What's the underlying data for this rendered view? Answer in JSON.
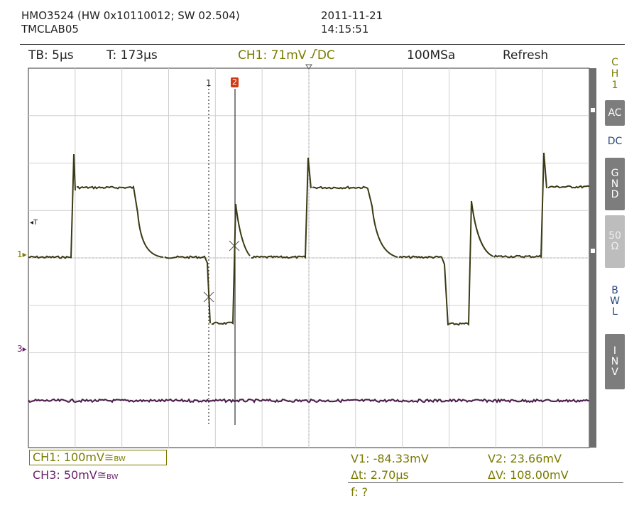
{
  "header": {
    "model_line": "HMO3524 (HW 0x10110012; SW 02.504)",
    "device_name": "TMCLAB05",
    "date": "2011-11-21",
    "time": "14:15:51"
  },
  "status_bar": {
    "timebase": "TB: 5µs",
    "trigger_time": "T: 173µs",
    "trigger_info": "CH1: 71mV",
    "trigger_coupling": "DC",
    "sample_rate": "100MSa",
    "mode": "Refresh"
  },
  "side_panel": {
    "channel_label": [
      "C",
      "H",
      "1"
    ],
    "buttons": [
      {
        "id": "ac",
        "lines": [
          "AC"
        ]
      },
      {
        "id": "dc",
        "lines": [
          "DC"
        ]
      },
      {
        "id": "gnd",
        "lines": [
          "G",
          "N",
          "D"
        ]
      },
      {
        "id": "50",
        "lines": [
          "50",
          "Ω"
        ]
      },
      {
        "id": "bwl",
        "lines": [
          "B",
          "W",
          "L"
        ]
      },
      {
        "id": "inv",
        "lines": [
          "I",
          "N",
          "V"
        ]
      }
    ]
  },
  "markers": {
    "trigger_marker": "T",
    "ch1_marker": "1",
    "ch3_marker": "3",
    "cursor1_label": "1",
    "cursor2_label": "2"
  },
  "channels": {
    "ch1": "CH1: 100mV≅",
    "ch1_bw": "BW",
    "ch3": "CH3: 50mV≅",
    "ch3_bw": "BW"
  },
  "measurements": {
    "v1": "V1: -84.33mV",
    "v2": "V2: 23.66mV",
    "dt": "Δt: 2.70µs",
    "dv": "ΔV: 108.00mV",
    "f": "f: ?"
  },
  "colors": {
    "ch1_trace": "#3a3a14",
    "ch3_trace": "#4a1a4a",
    "grid": "#cfcfcf",
    "ch1_text": "#7a7a00",
    "ch3_text": "#6a1f6a"
  }
}
